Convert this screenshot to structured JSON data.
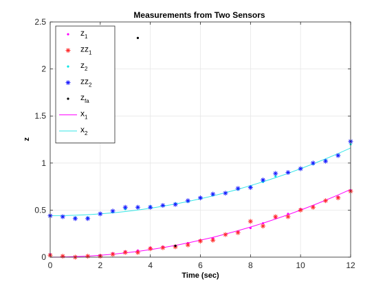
{
  "chart_data": {
    "type": "scatter",
    "title": "Measurements from Two Sensors",
    "xlabel": "Time (sec)",
    "ylabel": "z",
    "xlim": [
      0,
      12
    ],
    "ylim": [
      0,
      2.5
    ],
    "xticks": [
      0,
      2,
      4,
      6,
      8,
      10,
      12
    ],
    "yticks": [
      0,
      0.5,
      1,
      1.5,
      2,
      2.5
    ],
    "xtick_labels": [
      "0",
      "2",
      "4",
      "6",
      "8",
      "10",
      "12"
    ],
    "ytick_labels": [
      "0",
      "0.5",
      "1",
      "1.5",
      "2",
      "2.5"
    ],
    "grid": true,
    "legend_position": "top-left",
    "series": [
      {
        "name": "z",
        "sub": "1",
        "marker": "dot",
        "color": "#ff00ff",
        "x": [
          0,
          0.5,
          1,
          1.5,
          2,
          2.5,
          3,
          3.5,
          4,
          4.5,
          5,
          5.5,
          6,
          6.5,
          7,
          7.5,
          8,
          8.5,
          9,
          9.5,
          10,
          10.5,
          11,
          11.5,
          12
        ],
        "y": [
          0.03,
          0.01,
          0.0,
          0.01,
          0.02,
          0.04,
          0.06,
          0.07,
          0.1,
          0.11,
          0.12,
          0.15,
          0.18,
          0.2,
          0.24,
          0.27,
          0.31,
          0.36,
          0.42,
          0.46,
          0.51,
          0.54,
          0.6,
          0.64,
          0.71
        ]
      },
      {
        "name": "zz",
        "sub": "1",
        "marker": "asterisk",
        "color": "#ff2a2a",
        "x": [
          0,
          0.5,
          1,
          1.5,
          2,
          2.5,
          3,
          3.5,
          4,
          4.5,
          5,
          5.5,
          6,
          6.5,
          7,
          7.5,
          8,
          8.5,
          9,
          9.5,
          10,
          10.5,
          11,
          11.5,
          12
        ],
        "y": [
          0.02,
          0.01,
          0.0,
          0.01,
          0.01,
          0.03,
          0.05,
          0.05,
          0.09,
          0.1,
          0.11,
          0.13,
          0.17,
          0.18,
          0.24,
          0.26,
          0.38,
          0.33,
          0.43,
          0.43,
          0.5,
          0.53,
          0.6,
          0.63,
          0.7
        ]
      },
      {
        "name": "z",
        "sub": "2",
        "marker": "dot",
        "color": "#00e5e5",
        "x": [
          0,
          0.5,
          1,
          1.5,
          2,
          2.5,
          3,
          3.5,
          4,
          4.5,
          5,
          5.5,
          6,
          6.5,
          7,
          7.5,
          8,
          8.5,
          9,
          9.5,
          10,
          10.5,
          11,
          11.5,
          12
        ],
        "y": [
          0.44,
          0.43,
          0.42,
          0.42,
          0.46,
          0.48,
          0.51,
          0.53,
          0.54,
          0.55,
          0.57,
          0.59,
          0.63,
          0.66,
          0.68,
          0.72,
          0.75,
          0.8,
          0.86,
          0.9,
          0.94,
          0.99,
          1.03,
          1.08,
          1.2
        ]
      },
      {
        "name": "zz",
        "sub": "2",
        "marker": "asterisk",
        "color": "#1a1aff",
        "x": [
          0,
          0.5,
          1,
          1.5,
          2,
          2.5,
          3,
          3.5,
          4,
          4.5,
          5,
          5.5,
          6,
          6.5,
          7,
          7.5,
          8,
          8.5,
          9,
          9.5,
          10,
          10.5,
          11,
          11.5,
          12
        ],
        "y": [
          0.44,
          0.43,
          0.41,
          0.41,
          0.46,
          0.49,
          0.53,
          0.53,
          0.53,
          0.55,
          0.56,
          0.6,
          0.63,
          0.67,
          0.68,
          0.73,
          0.74,
          0.82,
          0.89,
          0.9,
          0.94,
          1.0,
          1.02,
          1.08,
          1.23
        ]
      },
      {
        "name": "z",
        "sub": "fa",
        "marker": "dot",
        "color": "#000000",
        "x": [
          3.5,
          5
        ],
        "y": [
          2.33,
          0.12
        ]
      },
      {
        "name": "x",
        "sub": "1",
        "marker": "line",
        "color": "#ff00ff",
        "x": [
          0,
          0.5,
          1,
          1.5,
          2,
          2.5,
          3,
          3.5,
          4,
          4.5,
          5,
          5.5,
          6,
          6.5,
          7,
          7.5,
          8,
          8.5,
          9,
          9.5,
          10,
          10.5,
          11,
          11.5,
          12
        ],
        "y": [
          0.0,
          0.001,
          0.005,
          0.011,
          0.02,
          0.031,
          0.045,
          0.061,
          0.08,
          0.101,
          0.125,
          0.151,
          0.18,
          0.211,
          0.245,
          0.281,
          0.32,
          0.361,
          0.405,
          0.451,
          0.5,
          0.551,
          0.605,
          0.661,
          0.72
        ]
      },
      {
        "name": "x",
        "sub": "2",
        "marker": "line",
        "color": "#33e6e6",
        "x": [
          0,
          0.5,
          1,
          1.5,
          2,
          2.5,
          3,
          3.5,
          4,
          4.5,
          5,
          5.5,
          6,
          6.5,
          7,
          7.5,
          8,
          8.5,
          9,
          9.5,
          10,
          10.5,
          11,
          11.5,
          12
        ],
        "y": [
          0.44,
          0.441,
          0.445,
          0.451,
          0.46,
          0.471,
          0.485,
          0.501,
          0.52,
          0.541,
          0.565,
          0.591,
          0.62,
          0.651,
          0.685,
          0.721,
          0.76,
          0.801,
          0.845,
          0.891,
          0.94,
          0.991,
          1.045,
          1.101,
          1.16
        ]
      }
    ]
  }
}
